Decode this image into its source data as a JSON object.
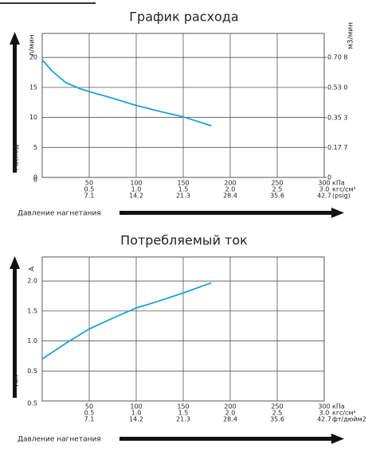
{
  "chart_data": [
    {
      "type": "line",
      "title": "График расхода",
      "ylabel": "Расход",
      "y_unit": "л/мин",
      "y2_unit": "м3/мин",
      "xlabel": "Давление нагнетания",
      "x": [
        0,
        10,
        25,
        40,
        50,
        75,
        100,
        125,
        150,
        180
      ],
      "values": [
        19.6,
        17.8,
        15.8,
        14.8,
        14.3,
        13.2,
        12.0,
        11.0,
        10.1,
        8.6
      ],
      "color": "#1ba1d8",
      "grid": true,
      "xlim": [
        0,
        300
      ],
      "xticks": [
        50,
        100,
        150,
        200,
        250,
        300
      ],
      "xticks_rows": [
        [
          0.5,
          {
            "value": 1.0,
            "label": "1.0"
          },
          1.5,
          {
            "value": 2.0,
            "label": "2.0"
          },
          2.5,
          {
            "value": 3.0,
            "label": "3.0"
          }
        ],
        [
          7.1,
          14.2,
          21.3,
          28.4,
          35.6,
          42.7
        ]
      ],
      "x_units": [
        "кПа",
        "кгс/см²",
        "(psig)"
      ],
      "ylim": [
        0,
        24
      ],
      "yticks": [
        0,
        5,
        10,
        15,
        20
      ],
      "y2lim": [
        0,
        0.85
      ],
      "y2ticks": [
        0,
        {
          "value": 0.177,
          "label": "0.17 7"
        },
        {
          "value": 0.353,
          "label": "0.35 3"
        },
        {
          "value": 0.53,
          "label": "0.53 0"
        },
        {
          "value": 0.708,
          "label": "0.70 8"
        }
      ]
    },
    {
      "type": "line",
      "title": "Потребляемый ток",
      "ylabel": "Ток",
      "y_unit": "A",
      "xlabel": "Давление нагнетания",
      "x": [
        0,
        25,
        50,
        75,
        100,
        125,
        150,
        180
      ],
      "values": [
        0.7,
        0.96,
        1.2,
        1.38,
        1.55,
        1.67,
        1.8,
        1.97
      ],
      "color": "#1ba1d8",
      "grid": true,
      "xlim": [
        0,
        300
      ],
      "xticks": [
        50,
        100,
        150,
        200,
        250,
        300
      ],
      "xticks_rows": [
        [
          0.5,
          {
            "value": 1.0,
            "label": "1.0"
          },
          1.5,
          {
            "value": 2.0,
            "label": "2.0"
          },
          2.5,
          {
            "value": 3.0,
            "label": "3.0"
          }
        ],
        [
          7.1,
          14.2,
          21.3,
          28.4,
          35.6,
          42.7
        ]
      ],
      "x_units": [
        "кПа",
        "кгс/см²",
        "фт/дюйм2"
      ],
      "ylim": [
        0,
        2.4
      ],
      "yticks": [
        0.5,
        {
          "value": 1.0,
          "label": "1.0"
        },
        1.5,
        {
          "value": 2.0,
          "label": "2.0"
        }
      ]
    }
  ]
}
